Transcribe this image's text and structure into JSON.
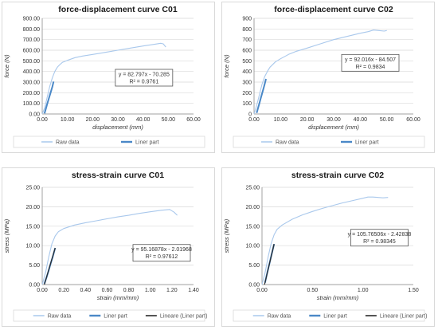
{
  "charts": [
    {
      "panel": "c1",
      "type": "line",
      "title": "force-displacement curve C01",
      "xlabel": "displacement (mm)",
      "ylabel": "force (N)",
      "xlim": [
        0,
        60
      ],
      "ylim": [
        0,
        900
      ],
      "x_ticks": [
        "0.00",
        "10.00",
        "20.00",
        "30.00",
        "40.00",
        "50.00",
        "60.00"
      ],
      "y_ticks": [
        "0.00",
        "100.00",
        "200.00",
        "300.00",
        "400.00",
        "500.00",
        "600.00",
        "700.00",
        "800.00",
        "900.00"
      ],
      "x_tick_values": [
        0,
        10,
        20,
        30,
        40,
        50,
        60
      ],
      "y_tick_values": [
        0,
        100,
        200,
        300,
        400,
        500,
        600,
        700,
        800,
        900
      ],
      "grid": "horizontal",
      "trendline": {
        "equation": "y = 82.797x - 70.285",
        "r2": "R² = 0.9761",
        "label_at": [
          29,
          420
        ]
      },
      "series": [
        {
          "name": "Raw data",
          "color": "#a9c8ec",
          "width": 1.1,
          "x": [
            0,
            1,
            2,
            3,
            4,
            5,
            6,
            7,
            8,
            10,
            13,
            16,
            20,
            25,
            30,
            35,
            40,
            45,
            47,
            48,
            49
          ],
          "y": [
            0,
            60,
            160,
            260,
            340,
            400,
            440,
            465,
            485,
            505,
            530,
            545,
            560,
            580,
            600,
            620,
            640,
            658,
            665,
            660,
            630
          ]
        },
        {
          "name": "Liner part",
          "color": "#4a88c7",
          "width": 2,
          "x": [
            0.9,
            1.5,
            2,
            2.5,
            3,
            3.5,
            4,
            4.5
          ],
          "y": [
            5,
            55,
            95,
            135,
            175,
            215,
            255,
            305
          ]
        }
      ]
    },
    {
      "panel": "c2",
      "type": "line",
      "title": "force-displacement curve C02",
      "xlabel": "displacement (mm)",
      "ylabel": "force (N)",
      "xlim": [
        0,
        60
      ],
      "ylim": [
        0,
        900
      ],
      "x_ticks": [
        "0.00",
        "10.00",
        "20.00",
        "30.00",
        "40.00",
        "50.00",
        "60.00"
      ],
      "y_ticks": [
        "0",
        "100",
        "200",
        "300",
        "400",
        "500",
        "600",
        "700",
        "800",
        "900"
      ],
      "x_tick_values": [
        0,
        10,
        20,
        30,
        40,
        50,
        60
      ],
      "y_tick_values": [
        0,
        100,
        200,
        300,
        400,
        500,
        600,
        700,
        800,
        900
      ],
      "grid": "horizontal",
      "trendline": {
        "equation": "y = 92.016x - 84.507",
        "r2": "R² = 0.9834",
        "label_at": [
          33,
          560
        ]
      },
      "series": [
        {
          "name": "Raw data",
          "color": "#a9c8ec",
          "width": 1.1,
          "x": [
            0,
            1,
            2,
            3,
            4,
            5,
            6,
            8,
            10,
            13,
            16,
            20,
            25,
            30,
            35,
            40,
            43,
            45,
            47,
            49,
            50
          ],
          "y": [
            0,
            80,
            180,
            280,
            350,
            400,
            440,
            490,
            520,
            560,
            590,
            620,
            660,
            700,
            730,
            760,
            775,
            790,
            785,
            780,
            785
          ]
        },
        {
          "name": "Liner part",
          "color": "#4a88c7",
          "width": 2,
          "x": [
            1,
            1.5,
            2,
            2.5,
            3,
            3.5,
            4,
            4.5
          ],
          "y": [
            10,
            55,
            100,
            145,
            190,
            235,
            280,
            330
          ]
        }
      ]
    },
    {
      "panel": "c3",
      "type": "line",
      "title": "stress-strain curve C01",
      "xlabel": "strain (mm/mm)",
      "ylabel": "stress (MPa)",
      "xlim": [
        0,
        1.4
      ],
      "ylim": [
        0,
        25
      ],
      "x_ticks": [
        "0.00",
        "0.20",
        "0.40",
        "0.60",
        "0.80",
        "1.00",
        "1.20",
        "1.40"
      ],
      "y_ticks": [
        "0.00",
        "5.00",
        "10.00",
        "15.00",
        "20.00",
        "25.00"
      ],
      "x_tick_values": [
        0,
        0.2,
        0.4,
        0.6,
        0.8,
        1.0,
        1.2,
        1.4
      ],
      "y_tick_values": [
        0,
        5,
        10,
        15,
        20,
        25
      ],
      "grid": "horizontal",
      "trendline": {
        "equation": "y = 95.16878x - 2.01968",
        "r2": "R² = 0.97612",
        "label_at": [
          0.84,
          10.3
        ]
      },
      "series": [
        {
          "name": "Raw data",
          "color": "#a9c8ec",
          "width": 1.1,
          "x": [
            0,
            0.03,
            0.06,
            0.09,
            0.12,
            0.15,
            0.2,
            0.3,
            0.4,
            0.5,
            0.6,
            0.7,
            0.8,
            0.9,
            1.0,
            1.1,
            1.18,
            1.22,
            1.25
          ],
          "y": [
            0,
            3,
            7,
            10.5,
            12.5,
            13.6,
            14.4,
            15.3,
            15.9,
            16.4,
            16.9,
            17.4,
            17.8,
            18.3,
            18.7,
            19.1,
            19.3,
            18.6,
            17.8
          ]
        },
        {
          "name": "Liner part",
          "color": "#4a88c7",
          "width": 2,
          "x": [
            0.02,
            0.04,
            0.06,
            0.08,
            0.1,
            0.12
          ],
          "y": [
            0.2,
            1.8,
            3.6,
            5.6,
            7.4,
            9.4
          ]
        },
        {
          "name": "Lineare (Liner part)",
          "color": "#2b2b2b",
          "width": 1.2,
          "x": [
            0.02,
            0.12
          ],
          "y": [
            0,
            9.4
          ]
        }
      ]
    },
    {
      "panel": "c4",
      "type": "line",
      "title": "stress-strain curve C02",
      "xlabel": "strain (mm/mm)",
      "ylabel": "stress (MPa)",
      "xlim": [
        0,
        1.5
      ],
      "ylim": [
        0,
        25
      ],
      "x_ticks": [
        "0.00",
        "0.50",
        "1.00",
        "1.50"
      ],
      "y_ticks": [
        "0.00",
        "5.00",
        "10.00",
        "15.00",
        "20.00",
        "25.00"
      ],
      "x_tick_values": [
        0,
        0.5,
        1.0,
        1.5
      ],
      "y_tick_values": [
        0,
        5,
        10,
        15,
        20,
        25
      ],
      "grid": "horizontal",
      "trendline": {
        "equation": "y = 105.76506x - 2.42838",
        "r2": "R² = 0.98345",
        "label_at": [
          0.88,
          14.2
        ]
      },
      "series": [
        {
          "name": "Raw data",
          "color": "#a9c8ec",
          "width": 1.1,
          "x": [
            0,
            0.03,
            0.06,
            0.09,
            0.12,
            0.15,
            0.2,
            0.3,
            0.4,
            0.5,
            0.6,
            0.7,
            0.8,
            0.9,
            1.0,
            1.05,
            1.1,
            1.15,
            1.2,
            1.25
          ],
          "y": [
            0,
            3,
            7,
            10.5,
            12.8,
            14.2,
            15.3,
            16.8,
            17.9,
            18.8,
            19.6,
            20.3,
            21.0,
            21.6,
            22.2,
            22.5,
            22.5,
            22.4,
            22.3,
            22.4
          ]
        },
        {
          "name": "Liner part",
          "color": "#4a88c7",
          "width": 2,
          "x": [
            0.03,
            0.05,
            0.07,
            0.09,
            0.11,
            0.12
          ],
          "y": [
            0.5,
            2.8,
            5.0,
            7.2,
            9.3,
            10.4
          ]
        },
        {
          "name": "Lineare (Liner part)",
          "color": "#2b2b2b",
          "width": 1.2,
          "x": [
            0.025,
            0.12
          ],
          "y": [
            0,
            10.4
          ]
        }
      ]
    }
  ]
}
